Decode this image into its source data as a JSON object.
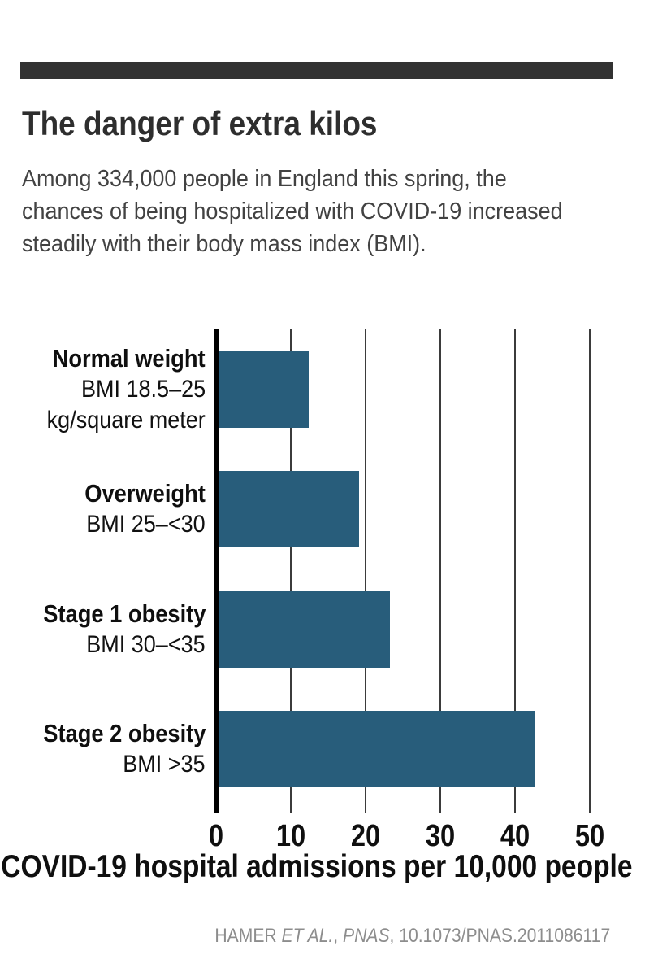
{
  "page": {
    "background": "#ffffff",
    "accent_bar_color": "#323232"
  },
  "header": {
    "title": "The danger of extra kilos",
    "subtitle_lines": [
      "Among 334,000 people in England this spring, the",
      "chances of being hospitalized with COVID-19 increased",
      "steadily with their body mass index (BMI)."
    ]
  },
  "chart_data": {
    "type": "bar",
    "orientation": "horizontal",
    "categories": [
      {
        "label": "Normal weight",
        "sublabel_lines": [
          "BMI 18.5–25",
          "kg/square meter"
        ]
      },
      {
        "label": "Overweight",
        "sublabel_lines": [
          "BMI 25–<30"
        ]
      },
      {
        "label": "Stage 1 obesity",
        "sublabel_lines": [
          "BMI 30–<35"
        ]
      },
      {
        "label": "Stage 2 obesity",
        "sublabel_lines": [
          "BMI >35"
        ]
      }
    ],
    "values": [
      12.4,
      19.1,
      23.3,
      42.7
    ],
    "xlabel": "COVID-19 hospital admissions per 10,000 people",
    "xticks": [
      0,
      10,
      20,
      30,
      40,
      50
    ],
    "xlim": [
      0,
      52
    ],
    "grid": true,
    "legend": false,
    "bar_color": "#285d7b"
  },
  "footer": {
    "credit_parts": [
      "HAMER ",
      "ET AL.",
      ", ",
      "PNAS",
      ", 10.1073/PNAS.2011086117"
    ],
    "credit_color": "#8d8d8d"
  }
}
